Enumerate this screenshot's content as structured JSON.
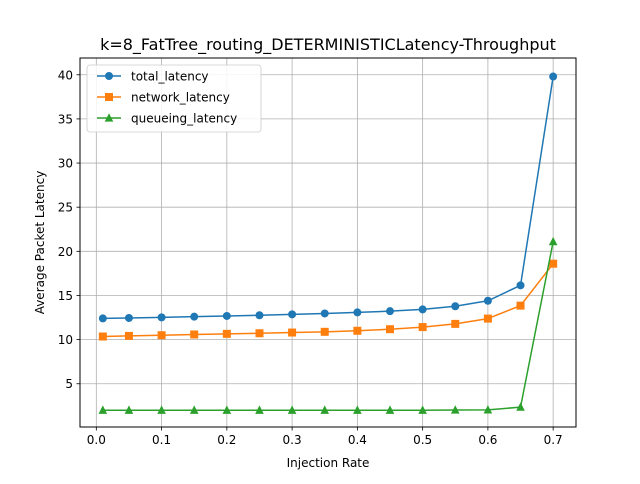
{
  "chart_data": {
    "type": "line",
    "title": "k=8_FatTree_routing_DETERMINISTICLatency-Throughput",
    "xlabel": "Injection Rate",
    "ylabel": "Average Packet Latency",
    "xlim": [
      -0.025,
      0.735
    ],
    "ylim": [
      0.1,
      41.9
    ],
    "xticks": [
      "0.0",
      "0.1",
      "0.2",
      "0.3",
      "0.4",
      "0.5",
      "0.6",
      "0.7"
    ],
    "yticks": [
      "5",
      "10",
      "15",
      "20",
      "25",
      "30",
      "35",
      "40"
    ],
    "grid": true,
    "legend_position": "upper-left",
    "x": [
      0.01,
      0.05,
      0.1,
      0.15,
      0.2,
      0.25,
      0.3,
      0.35,
      0.4,
      0.45,
      0.5,
      0.55,
      0.6,
      0.65,
      0.7
    ],
    "series": [
      {
        "name": "total_latency",
        "color": "#1f77b4",
        "marker": "circle",
        "values": [
          12.4,
          12.45,
          12.52,
          12.6,
          12.68,
          12.76,
          12.86,
          12.96,
          13.08,
          13.22,
          13.42,
          13.78,
          14.4,
          16.15,
          39.8
        ]
      },
      {
        "name": "network_latency",
        "color": "#ff7f0e",
        "marker": "square",
        "values": [
          10.35,
          10.42,
          10.5,
          10.58,
          10.65,
          10.72,
          10.8,
          10.88,
          11.0,
          11.18,
          11.42,
          11.78,
          12.38,
          13.85,
          18.6
        ]
      },
      {
        "name": "queueing_latency",
        "color": "#2ca02c",
        "marker": "triangle",
        "values": [
          2.0,
          2.0,
          2.0,
          2.0,
          2.0,
          2.0,
          2.0,
          2.0,
          2.0,
          2.0,
          2.0,
          2.02,
          2.04,
          2.35,
          21.1
        ]
      }
    ]
  }
}
